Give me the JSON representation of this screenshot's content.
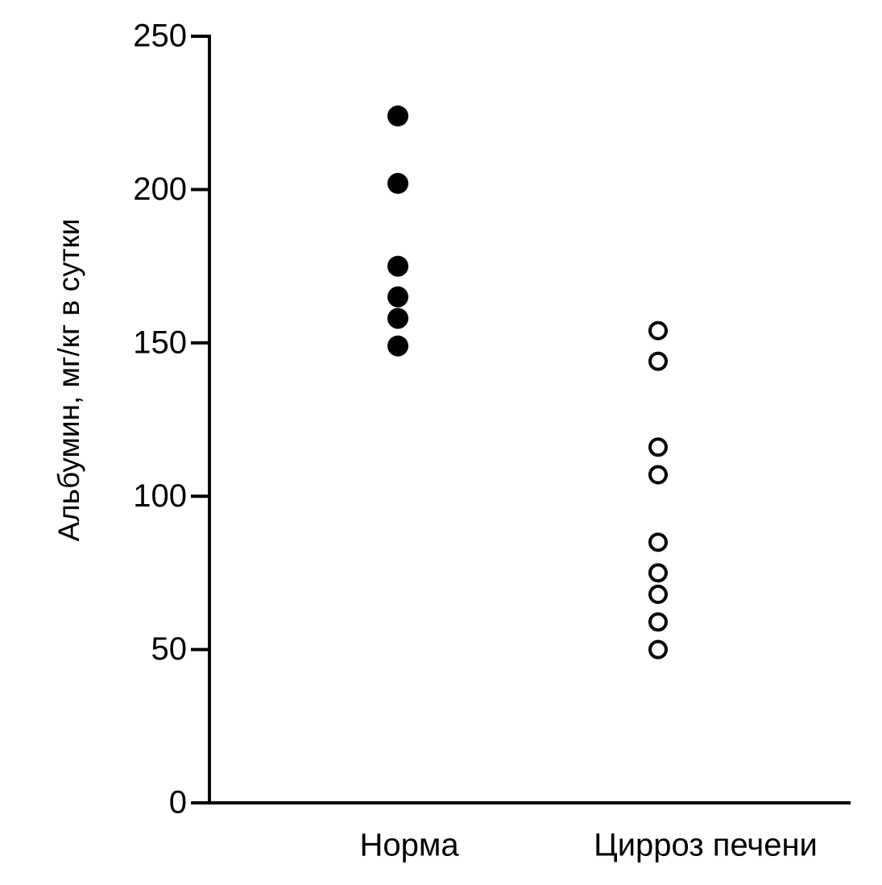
{
  "chart_data": {
    "type": "strip",
    "y_label": "Альбумин, мг/кг в сутки",
    "categories": [
      "Норма",
      "Цирроз печени"
    ],
    "values": [
      [
        224,
        202,
        175,
        165,
        158,
        149
      ],
      [
        154,
        144,
        116,
        107,
        85,
        75,
        68,
        59,
        50
      ]
    ],
    "marker_fill": [
      "#000000",
      "none"
    ],
    "color": "#000000",
    "ylim": [
      0,
      250
    ],
    "yticks": [
      0,
      50,
      100,
      150,
      200,
      250
    ],
    "grid": false
  }
}
